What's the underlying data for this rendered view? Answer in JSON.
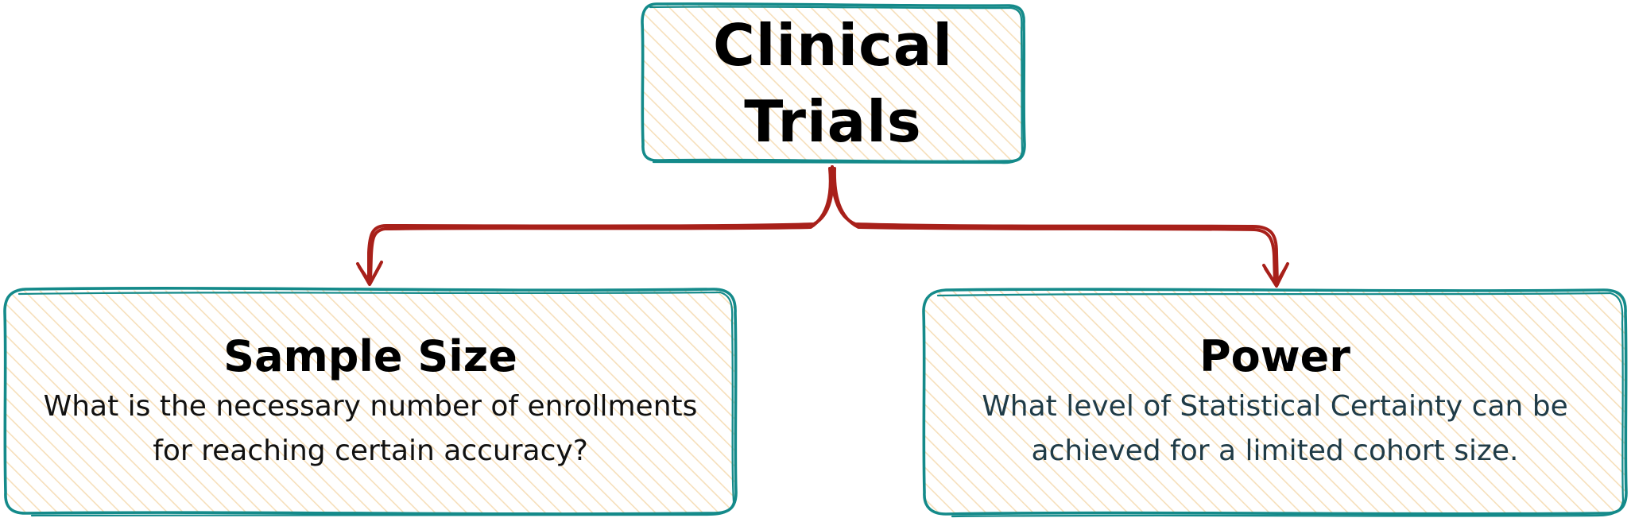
{
  "diagram": {
    "root": {
      "title_line1": "Clinical",
      "title_line2": "Trials"
    },
    "children": [
      {
        "title": "Sample Size",
        "desc_line1": "What is the necessary number of enrollments",
        "desc_line2": "for reaching certain accuracy?"
      },
      {
        "title": "Power",
        "desc_line1": "What level of Statistical Certainty can be",
        "desc_line2": "achieved for a limited cohort size."
      }
    ]
  },
  "colors": {
    "box_stroke": "#148a8a",
    "box_fill_hatch": "#f6dfba",
    "arrow": "#a8201a",
    "root_text": "#000000",
    "power_desc_text": "#1f3b47"
  }
}
